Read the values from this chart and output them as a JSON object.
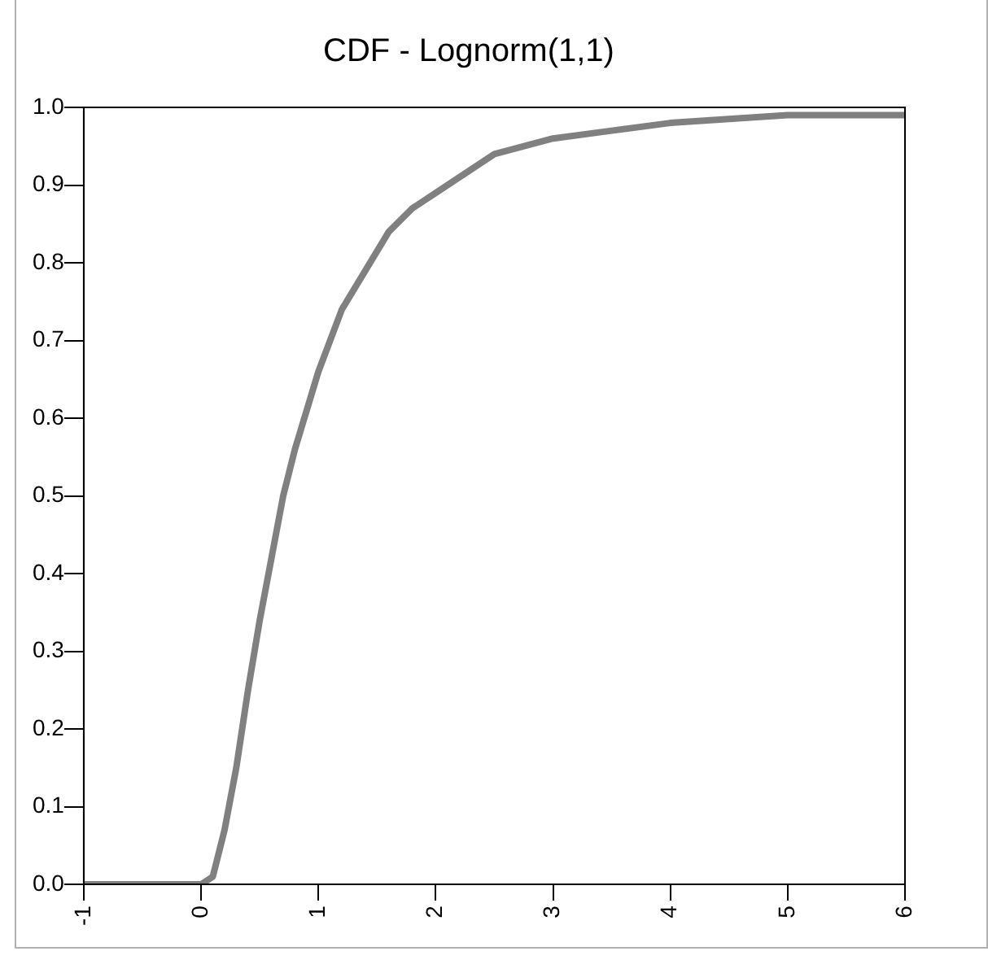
{
  "chart_data": {
    "type": "line",
    "title": "CDF - Lognorm(1,1)",
    "xlim": [
      -1,
      6
    ],
    "xticks": [
      -1,
      0,
      1,
      2,
      3,
      4,
      5,
      6
    ],
    "ylim": [
      0,
      1
    ],
    "yticks": [
      {
        "value": 0,
        "label": "0.0"
      },
      0.1,
      0.2,
      0.3,
      0.4,
      0.5,
      0.6,
      0.7,
      0.8,
      0.9,
      {
        "value": 1,
        "label": "1.0"
      }
    ],
    "grid": false,
    "marker": "none",
    "line_style": "solid",
    "series": [
      {
        "color": "#808080",
        "x": [
          -1,
          0,
          0.1,
          0.2,
          0.3,
          0.4,
          0.5,
          0.6,
          0.7,
          0.8,
          0.9,
          1,
          1.2,
          1.4,
          1.6,
          1.8,
          2,
          2.5,
          3,
          3.5,
          4,
          5,
          6
        ],
        "values": [
          0,
          0,
          0.01,
          0.07,
          0.15,
          0.25,
          0.34,
          0.42,
          0.5,
          0.56,
          0.61,
          0.66,
          0.74,
          0.79,
          0.84,
          0.87,
          0.89,
          0.94,
          0.96,
          0.97,
          0.98,
          0.99,
          0.99
        ]
      }
    ]
  }
}
